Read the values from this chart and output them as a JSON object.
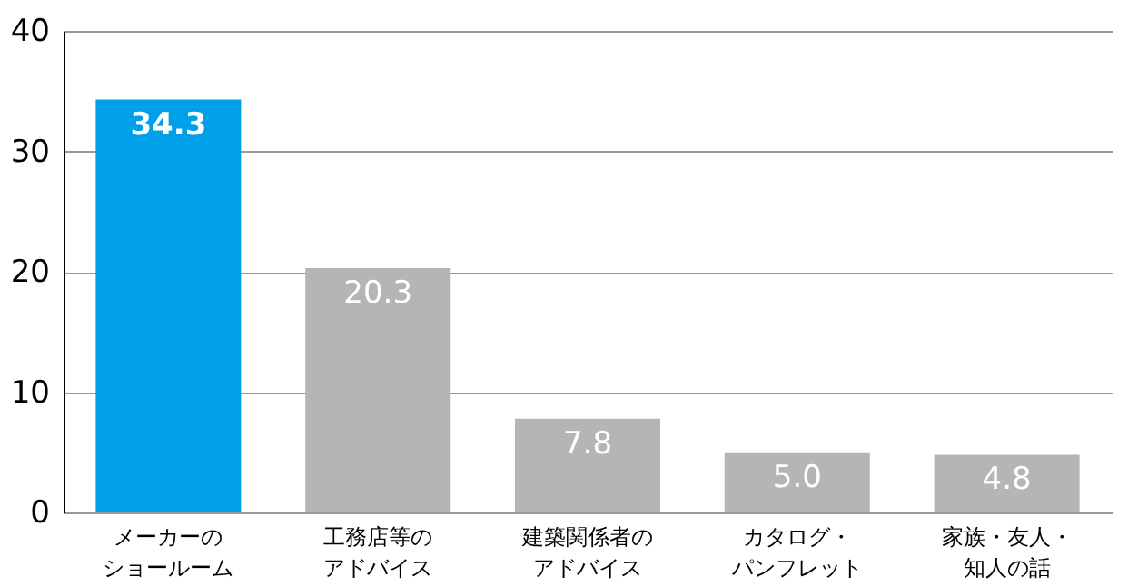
{
  "chart_data": {
    "type": "bar",
    "categories": [
      "メーカーのショールーム",
      "工務店等のアドバイス",
      "建築関係者のアドバイス",
      "カタログ・パンフレット",
      "家族・友人・知人の話"
    ],
    "values": [
      34.3,
      20.3,
      7.8,
      5.0,
      4.8
    ],
    "colors": [
      "#00a0e9",
      "#b5b5b5",
      "#b5b5b5",
      "#b5b5b5",
      "#b5b5b5"
    ],
    "value_labels": [
      "34.3",
      "20.3",
      "7.8",
      "5.0",
      "4.8"
    ],
    "ylim": [
      0,
      40
    ],
    "yticks": [
      0,
      10,
      20,
      30,
      40
    ],
    "grid": "y"
  }
}
